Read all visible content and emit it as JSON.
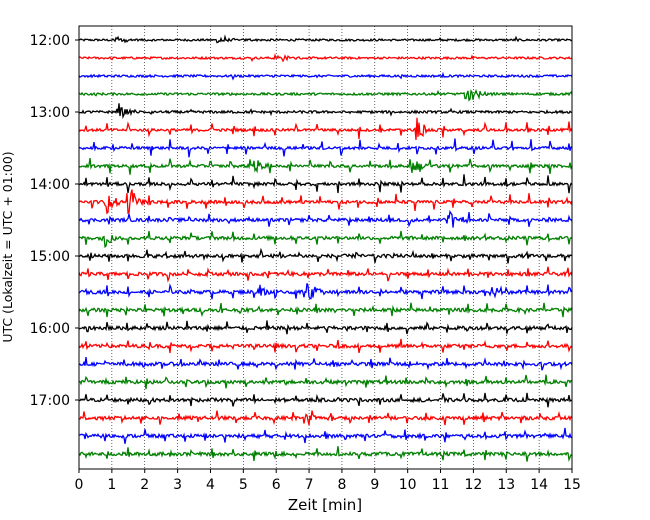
{
  "chart_data": {
    "type": "line",
    "subtype": "helicorder",
    "xlabel": "Zeit  [min]",
    "ylabel": "UTC (Lokalzeit = UTC + 01:00)",
    "xlim": [
      0,
      15
    ],
    "x_ticks": [
      "0",
      "1",
      "2",
      "3",
      "4",
      "5",
      "6",
      "7",
      "8",
      "9",
      "10",
      "11",
      "12",
      "13",
      "14",
      "15"
    ],
    "y_tick_labels": [
      "12:00",
      "13:00",
      "14:00",
      "15:00",
      "16:00",
      "17:00"
    ],
    "traces_per_hour": 4,
    "trace_count": 24,
    "trace_colors": [
      "#000000",
      "#ff0000",
      "#0000ff",
      "#008000"
    ],
    "grid": "vertical dotted at each minute",
    "events": [
      {
        "trace": 0,
        "minute": 1.15,
        "amplitude": 6
      },
      {
        "trace": 0,
        "minute": 4.25,
        "amplitude": 6
      },
      {
        "trace": 1,
        "minute": 6.0,
        "amplitude": 6
      },
      {
        "trace": 3,
        "minute": 11.8,
        "amplitude": 12
      },
      {
        "trace": 4,
        "minute": 1.2,
        "amplitude": 9
      },
      {
        "trace": 5,
        "minute": 10.25,
        "amplitude": 16
      },
      {
        "trace": 7,
        "minute": 10.15,
        "amplitude": 14
      },
      {
        "trace": 7,
        "minute": 5.3,
        "amplitude": 9
      },
      {
        "trace": 9,
        "minute": 1.5,
        "amplitude": 20
      },
      {
        "trace": 9,
        "minute": 0.85,
        "amplitude": 12
      },
      {
        "trace": 10,
        "minute": 11.25,
        "amplitude": 12
      },
      {
        "trace": 11,
        "minute": 0.75,
        "amplitude": 10
      },
      {
        "trace": 14,
        "minute": 5.5,
        "amplitude": 10
      },
      {
        "trace": 14,
        "minute": 6.9,
        "amplitude": 12
      },
      {
        "trace": 14,
        "minute": 12.5,
        "amplitude": 12
      },
      {
        "trace": 21,
        "minute": 6.9,
        "amplitude": 8
      }
    ]
  }
}
